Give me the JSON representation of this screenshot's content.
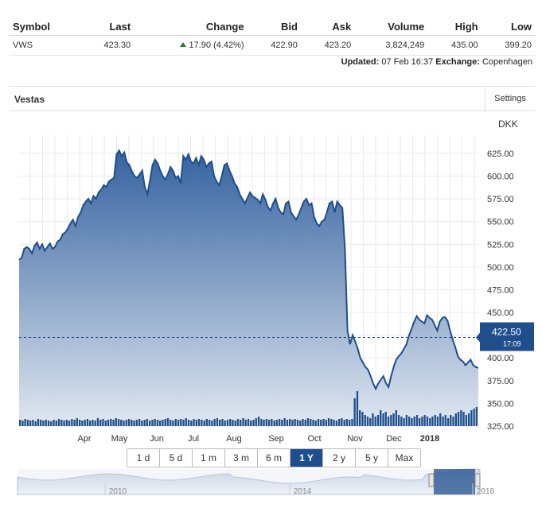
{
  "quote": {
    "headers": [
      "Symbol",
      "Last",
      "Change",
      "Bid",
      "Ask",
      "Volume",
      "High",
      "Low"
    ],
    "row": {
      "symbol": "VWS",
      "last": "423.30",
      "change": "17.90 (4.42%)",
      "bid": "422.90",
      "ask": "423.20",
      "volume": "3,824,249",
      "high": "435.00",
      "low": "399.20"
    },
    "updated_label": "Updated:",
    "updated_value": "07 Feb 16:37",
    "exchange_label": "Exchange:",
    "exchange_value": "Copenhagen"
  },
  "chart_header": {
    "title": "Vestas",
    "settings": "Settings",
    "currency": "DKK"
  },
  "colors": {
    "line": "#1f4e8c",
    "area_top": "#2a5a9a",
    "area_bottom": "#dfe6f0",
    "positive": "#2a7d2a"
  },
  "ranges": [
    "1 d",
    "5 d",
    "1 m",
    "3 m",
    "6 m",
    "1 Y",
    "2 y",
    "5 y",
    "Max"
  ],
  "active_range": "1 Y",
  "chart_data": {
    "type": "area",
    "y_ticks": [
      "625.00",
      "600.00",
      "575.00",
      "550.00",
      "525.00",
      "500.00",
      "475.00",
      "450.00",
      "425.00",
      "400.00",
      "375.00",
      "350.00",
      "325.00"
    ],
    "ylim": [
      325,
      645
    ],
    "x_ticks": [
      "Apr",
      "May",
      "Jun",
      "Jul",
      "Aug",
      "Sep",
      "Oct",
      "Nov",
      "Dec",
      "2018"
    ],
    "last_price": "422.50",
    "last_time": "17:09",
    "series": [
      {
        "values": [
          508,
          510,
          520,
          522,
          520,
          515,
          523,
          527,
          520,
          525,
          518,
          522,
          526,
          520,
          522,
          528,
          530,
          536,
          538,
          542,
          548,
          552,
          545,
          555,
          560,
          568,
          572,
          575,
          570,
          578,
          575,
          582,
          585,
          590,
          588,
          594,
          596,
          598,
          624,
          628,
          622,
          626,
          615,
          612,
          605,
          600,
          598,
          602,
          606,
          588,
          580,
          595,
          612,
          618,
          614,
          606,
          600,
          596,
          602,
          610,
          606,
          598,
          600,
          592,
          622,
          618,
          624,
          616,
          614,
          620,
          612,
          622,
          618,
          610,
          614,
          616,
          600,
          594,
          590,
          600,
          612,
          614,
          606,
          600,
          592,
          588,
          580,
          575,
          570,
          576,
          582,
          578,
          576,
          574,
          570,
          580,
          574,
          566,
          562,
          570,
          575,
          565,
          560,
          558,
          570,
          572,
          560,
          556,
          552,
          558,
          565,
          572,
          575,
          568,
          570,
          555,
          548,
          545,
          550,
          552,
          560,
          570,
          572,
          560,
          572,
          568,
          565,
          520,
          430,
          415,
          425,
          418,
          410,
          400,
          395,
          390,
          387,
          380,
          372,
          366,
          372,
          376,
          380,
          372,
          368,
          380,
          390,
          398,
          402,
          405,
          410,
          415,
          425,
          432,
          440,
          446,
          442,
          440,
          438,
          447,
          444,
          442,
          436,
          430,
          440,
          444,
          445,
          441,
          430,
          420,
          412,
          402,
          398,
          396,
          392,
          395,
          398,
          392,
          390,
          389
        ]
      }
    ],
    "volume_values": [
      8,
      7,
      9,
      8,
      7,
      8,
      6,
      9,
      8,
      7,
      8,
      7,
      6,
      8,
      7,
      9,
      8,
      7,
      8,
      7,
      9,
      8,
      10,
      8,
      7,
      8,
      9,
      7,
      8,
      7,
      10,
      8,
      9,
      7,
      8,
      9,
      8,
      10,
      9,
      8,
      7,
      8,
      9,
      8,
      7,
      8,
      9,
      7,
      8,
      9,
      7,
      8,
      9,
      8,
      7,
      8,
      9,
      10,
      8,
      7,
      9,
      8,
      9,
      8,
      10,
      8,
      7,
      9,
      8,
      9,
      8,
      7,
      9,
      8,
      7,
      9,
      10,
      8,
      9,
      7,
      8,
      9,
      8,
      7,
      9,
      8,
      10,
      8,
      9,
      7,
      8,
      10,
      12,
      9,
      8,
      9,
      8,
      9,
      7,
      8,
      9,
      8,
      10,
      8,
      9,
      8,
      9,
      8,
      7,
      9,
      8,
      10,
      9,
      8,
      7,
      9,
      8,
      9,
      8,
      10,
      9,
      8,
      7,
      9,
      10,
      8,
      9,
      8,
      9,
      35,
      44,
      20,
      18,
      14,
      12,
      10,
      16,
      12,
      14,
      20,
      16,
      18,
      12,
      14,
      16,
      20,
      14,
      12,
      10,
      14,
      12,
      10,
      12,
      14,
      10,
      12,
      14,
      12,
      10,
      12,
      14,
      12,
      16,
      12,
      14,
      10,
      14,
      12,
      16,
      18,
      20,
      18,
      14,
      16,
      20,
      22,
      24
    ]
  },
  "navigator": {
    "labels": [
      "2010",
      "2014",
      "2018"
    ]
  }
}
